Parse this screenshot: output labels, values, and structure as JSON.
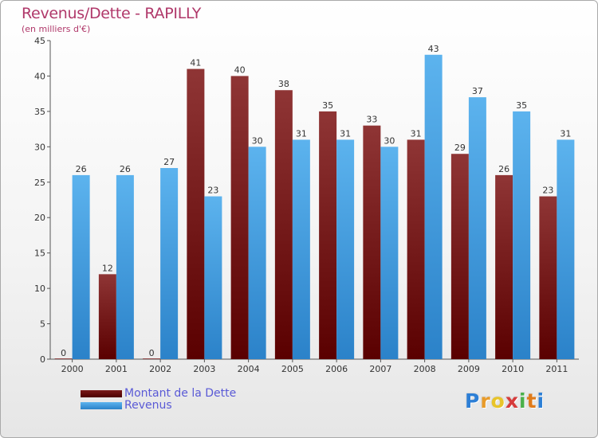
{
  "title": "Revenus/Dette - RAPILLY",
  "subtitle": "(en milliers d'€)",
  "logo": {
    "text": "Proxiti",
    "letters": [
      {
        "ch": "P",
        "color": "#2d7fd6"
      },
      {
        "ch": "r",
        "color": "#e89b2a"
      },
      {
        "ch": "o",
        "color": "#e8c42a"
      },
      {
        "ch": "x",
        "color": "#d63b3b"
      },
      {
        "ch": "i",
        "color": "#4ab04a"
      },
      {
        "ch": "t",
        "color": "#e07b1a"
      },
      {
        "ch": "i",
        "color": "#2d7fd6"
      }
    ]
  },
  "legend": {
    "position": "bottom-left",
    "items": [
      {
        "label": "Montant de la Dette",
        "color": "#6b0e0e"
      },
      {
        "label": "Revenus",
        "color": "#3e9ee6"
      }
    ]
  },
  "chart_data": {
    "type": "bar",
    "title": "Revenus/Dette - RAPILLY",
    "subtitle": "(en milliers d'€)",
    "xlabel": "",
    "ylabel": "",
    "ylim": [
      0,
      45
    ],
    "yticks": [
      0,
      5,
      10,
      15,
      20,
      25,
      30,
      35,
      40,
      45
    ],
    "grid": false,
    "categories": [
      "2000",
      "2001",
      "2002",
      "2003",
      "2004",
      "2005",
      "2006",
      "2007",
      "2008",
      "2009",
      "2010",
      "2011"
    ],
    "series": [
      {
        "name": "Montant de la Dette",
        "color_top": "#8f3535",
        "color_bottom": "#5a0000",
        "values": [
          0,
          12,
          0,
          41,
          40,
          38,
          35,
          33,
          31,
          29,
          26,
          23
        ]
      },
      {
        "name": "Revenus",
        "color_top": "#5cb3ee",
        "color_bottom": "#2b82c9",
        "values": [
          26,
          26,
          27,
          23,
          30,
          31,
          31,
          30,
          43,
          37,
          35,
          31
        ]
      }
    ]
  }
}
